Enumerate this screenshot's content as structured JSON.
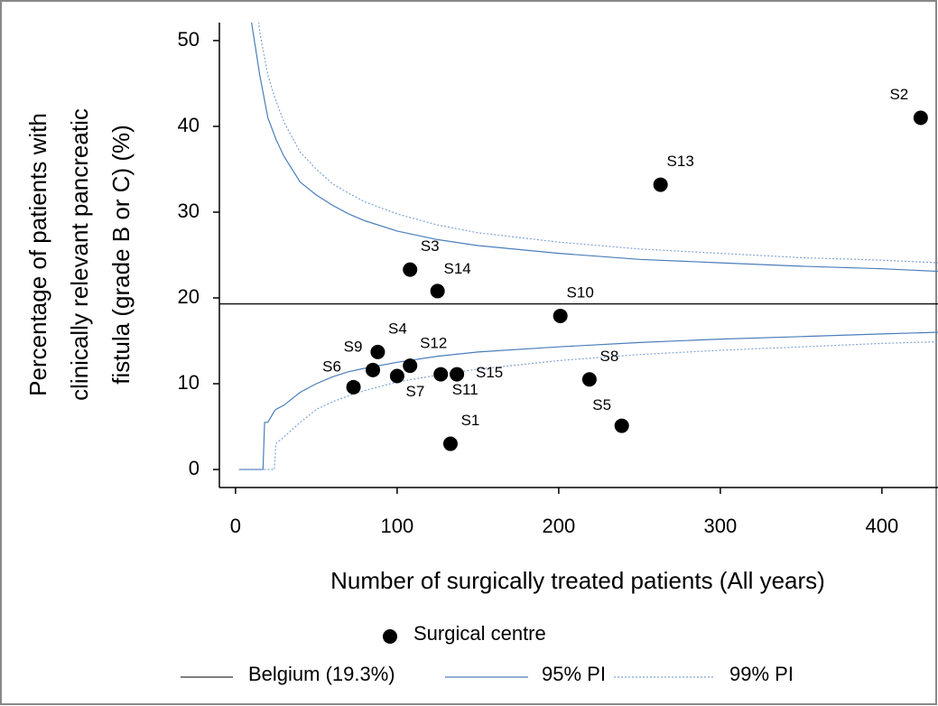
{
  "chart_data": {
    "type": "funnel",
    "x_label": "Number of surgically treated patients (All years)",
    "y_label": [
      "Percentage of patients with",
      "clinically relevant pancreatic",
      "fistula (grade B or C) (%)"
    ],
    "xlim": [
      -10,
      434.7
    ],
    "ylim": [
      -2.1,
      52.1
    ],
    "xticks": [
      0,
      100,
      200,
      300,
      400
    ],
    "yticks": [
      0,
      10,
      20,
      30,
      40,
      50
    ],
    "benchmark": {
      "name": "Belgium (19.3%)",
      "value": 19.3,
      "color": "#000000"
    },
    "limits": [
      {
        "name": "95% PI",
        "color": "#4a7ebb",
        "dashed": false,
        "x": [
          2,
          5,
          10,
          15,
          17,
          18,
          20,
          24,
          25,
          30,
          40,
          50,
          60,
          70,
          80,
          100,
          125,
          150,
          200,
          250,
          300,
          350,
          400,
          435
        ],
        "upper": [
          120,
          75,
          52,
          46,
          44,
          43,
          41,
          39,
          38.5,
          36.5,
          33.5,
          32,
          30.8,
          29.8,
          29,
          27.8,
          26.8,
          26.1,
          25.2,
          24.5,
          24.1,
          23.7,
          23.4,
          23.1
        ],
        "lower": [
          0,
          0,
          0,
          0,
          0,
          5.5,
          5.5,
          6.8,
          7,
          7.5,
          9,
          10,
          10.8,
          11.4,
          11.8,
          12.5,
          13.2,
          13.7,
          14.3,
          14.8,
          15.2,
          15.5,
          15.8,
          16
        ]
      },
      {
        "name": "99% PI",
        "color": "#7fa3d6",
        "dashed": true,
        "x": [
          2,
          5,
          10,
          15,
          17,
          18,
          20,
          24,
          25,
          30,
          40,
          50,
          60,
          70,
          80,
          100,
          125,
          150,
          200,
          250,
          300,
          350,
          400,
          435
        ],
        "upper": [
          130,
          85,
          60,
          51,
          49,
          48,
          46,
          43.5,
          43,
          40.5,
          37,
          35,
          33.3,
          32.2,
          31.2,
          29.8,
          28.5,
          27.6,
          26.5,
          25.7,
          25.2,
          24.7,
          24.4,
          24.1
        ],
        "lower": [
          0,
          0,
          0,
          0,
          0,
          0,
          0,
          0,
          3,
          3.8,
          5.5,
          7,
          7.9,
          8.6,
          9.2,
          10.2,
          11,
          11.7,
          12.7,
          13.4,
          13.9,
          14.3,
          14.7,
          14.9
        ]
      }
    ],
    "points": {
      "name": "Surgical centre",
      "color": "#000000",
      "labels": [
        "S1",
        "S2",
        "S3",
        "S4",
        "S5",
        "S6",
        "S7",
        "S8",
        "S9",
        "S10",
        "S11",
        "S12",
        "S13",
        "S14",
        "S15"
      ],
      "x": [
        133,
        424,
        108,
        88,
        239,
        73,
        100,
        219,
        85,
        201,
        127,
        108,
        263,
        125,
        137
      ],
      "values": [
        3,
        41,
        23.3,
        13.7,
        5.1,
        9.6,
        10.9,
        10.5,
        11.6,
        17.9,
        11.1,
        12.1,
        33.2,
        20.8,
        11.1
      ]
    }
  }
}
